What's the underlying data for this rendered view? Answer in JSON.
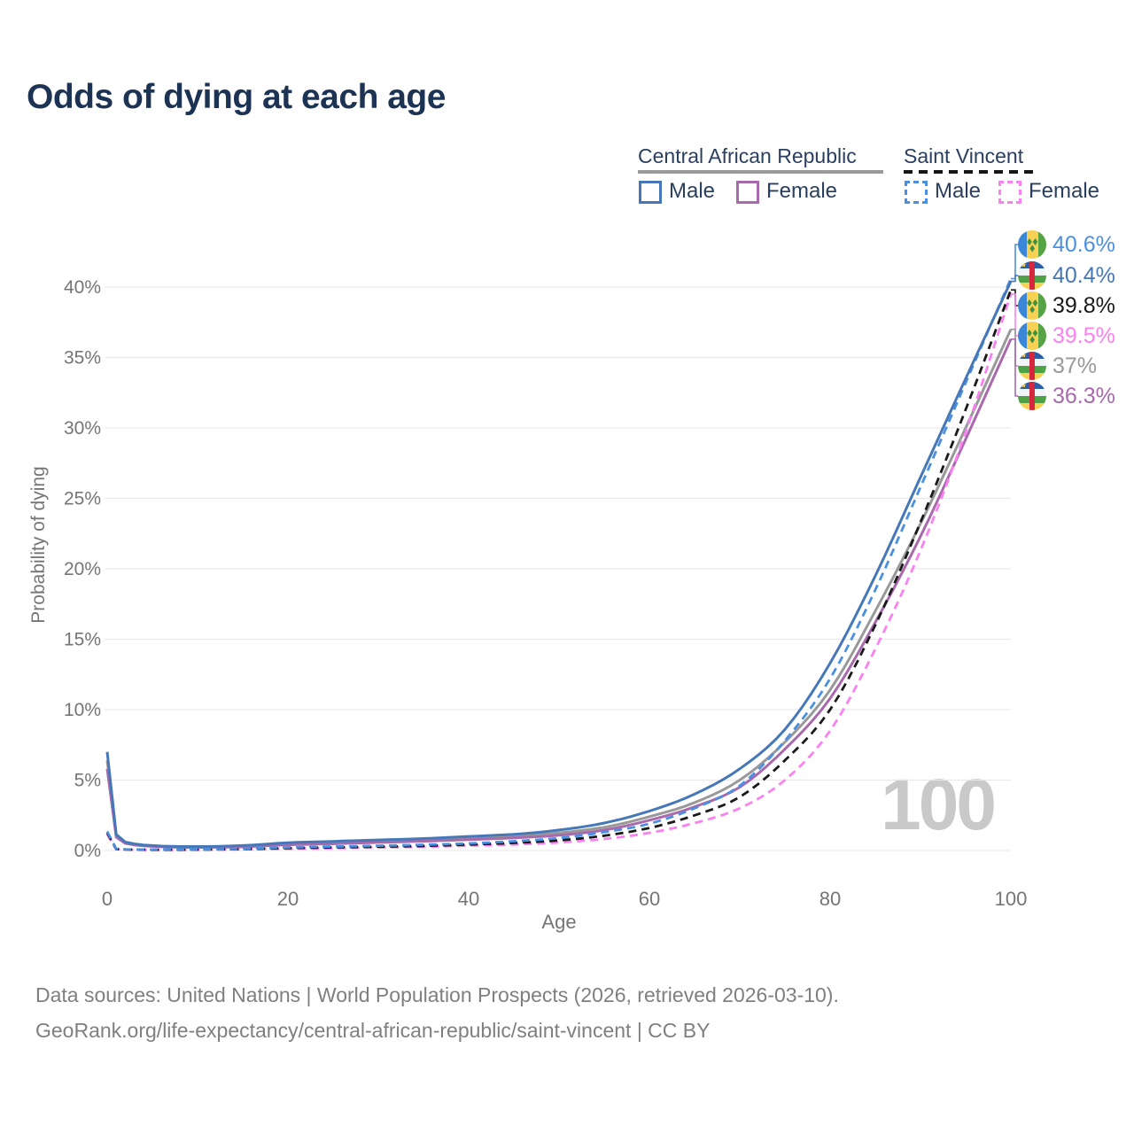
{
  "title": "Odds of dying at each age",
  "legend": {
    "car": {
      "label": "Central African Republic",
      "male_label": "Male",
      "female_label": "Female"
    },
    "sv": {
      "label": "Saint Vincent",
      "male_label": "Male",
      "female_label": "Female"
    }
  },
  "colors": {
    "car_male": "#4678b8",
    "car_female": "#a869ad",
    "car_total": "#999999",
    "sv_male": "#4a90e2",
    "sv_female": "#fb80f2",
    "sv_total": "#1a1a1a",
    "title_text": "#1c3354",
    "legend_text": "#2a3f5f",
    "axis_text": "#757575",
    "grid": "#e9e9e9",
    "watermark": "#c9c9c9",
    "footer_text": "#7f7f7f"
  },
  "chart_data": {
    "type": "line",
    "title": "Odds of dying at each age",
    "xlabel": "Age",
    "ylabel": "Probability of dying",
    "xlim": [
      0,
      100
    ],
    "ylim_percent": [
      0,
      42
    ],
    "grid": true,
    "x_ticks": [
      0,
      20,
      40,
      60,
      80,
      100
    ],
    "y_ticks": [
      "0%",
      "5%",
      "10%",
      "15%",
      "20%",
      "25%",
      "30%",
      "35%",
      "40%"
    ],
    "y_tick_values": [
      0,
      5,
      10,
      15,
      20,
      25,
      30,
      35,
      40
    ],
    "watermark": "100",
    "ages": [
      0,
      1,
      2,
      5,
      10,
      15,
      20,
      25,
      30,
      35,
      40,
      45,
      50,
      55,
      60,
      65,
      70,
      75,
      80,
      85,
      90,
      95,
      100
    ],
    "series": [
      {
        "id": "car_male",
        "name": "Central African Republic — Male",
        "country": "Central African Republic",
        "sex": "Male",
        "style": "solid",
        "values_percent": [
          7.0,
          1.15,
          0.6,
          0.35,
          0.28,
          0.35,
          0.55,
          0.65,
          0.75,
          0.85,
          1.0,
          1.15,
          1.45,
          1.95,
          2.8,
          4.0,
          5.8,
          8.6,
          13.3,
          19.5,
          26.5,
          33.5,
          40.4
        ]
      },
      {
        "id": "car_total",
        "name": "Central African Republic — Total",
        "country": "Central African Republic",
        "sex": "Total",
        "style": "solid",
        "values_percent": [
          6.4,
          1.05,
          0.55,
          0.32,
          0.25,
          0.3,
          0.48,
          0.57,
          0.66,
          0.76,
          0.88,
          1.02,
          1.25,
          1.65,
          2.4,
          3.4,
          5.0,
          7.7,
          11.4,
          17.0,
          23.2,
          30.0,
          37.0
        ]
      },
      {
        "id": "car_female",
        "name": "Central African Republic — Female",
        "country": "Central African Republic",
        "sex": "Female",
        "style": "solid",
        "values_percent": [
          5.8,
          0.95,
          0.5,
          0.29,
          0.22,
          0.26,
          0.4,
          0.48,
          0.57,
          0.66,
          0.77,
          0.9,
          1.08,
          1.45,
          2.15,
          3.1,
          4.5,
          7.2,
          10.8,
          16.2,
          22.3,
          29.2,
          36.3
        ]
      },
      {
        "id": "sv_male",
        "name": "Saint Vincent — Male",
        "country": "Saint Vincent",
        "sex": "Male",
        "style": "dashed",
        "values_percent": [
          1.35,
          0.12,
          0.08,
          0.06,
          0.07,
          0.12,
          0.22,
          0.28,
          0.34,
          0.41,
          0.5,
          0.66,
          0.88,
          1.3,
          1.9,
          3.0,
          4.6,
          7.8,
          12.2,
          18.5,
          25.8,
          33.2,
          40.6
        ]
      },
      {
        "id": "sv_total",
        "name": "Saint Vincent — Total",
        "country": "Saint Vincent",
        "sex": "Total",
        "style": "dashed",
        "values_percent": [
          1.25,
          0.1,
          0.07,
          0.05,
          0.06,
          0.1,
          0.17,
          0.22,
          0.27,
          0.33,
          0.42,
          0.54,
          0.72,
          1.05,
          1.6,
          2.5,
          3.8,
          6.4,
          10.0,
          16.0,
          23.3,
          31.3,
          39.8
        ]
      },
      {
        "id": "sv_female",
        "name": "Saint Vincent — Female",
        "country": "Saint Vincent",
        "sex": "Female",
        "style": "dashed",
        "values_percent": [
          1.15,
          0.09,
          0.06,
          0.04,
          0.05,
          0.08,
          0.12,
          0.16,
          0.21,
          0.26,
          0.34,
          0.43,
          0.57,
          0.82,
          1.25,
          1.95,
          3.0,
          5.0,
          8.5,
          14.3,
          21.3,
          29.7,
          39.5
        ]
      }
    ]
  },
  "end_labels": [
    {
      "text": "40.6%",
      "series": "sv_male",
      "flag": "sv",
      "color": "#4a90e2"
    },
    {
      "text": "40.4%",
      "series": "car_male",
      "flag": "car",
      "color": "#4678b8"
    },
    {
      "text": "39.8%",
      "series": "sv_total",
      "flag": "sv",
      "color": "#1a1a1a"
    },
    {
      "text": "39.5%",
      "series": "sv_female",
      "flag": "sv",
      "color": "#fb80f2"
    },
    {
      "text": "37%",
      "series": "car_total",
      "flag": "car",
      "color": "#999999"
    },
    {
      "text": "36.3%",
      "series": "car_female",
      "flag": "car",
      "color": "#a869ad"
    }
  ],
  "footer": {
    "line1": "Data sources: United Nations | World Population Prospects (2026, retrieved 2026-03-10).",
    "line2": "GeoRank.org/life-expectancy/central-african-republic/saint-vincent | CC BY"
  }
}
